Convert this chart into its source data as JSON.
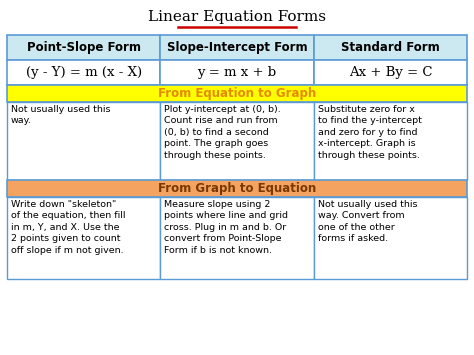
{
  "title": "Linear Equation Forms",
  "title_underline_color": "#cc0000",
  "header_bg": "#cce8f0",
  "header_border": "#5b9bd5",
  "header_texts": [
    "Point-Slope Form",
    "Slope-Intercept Form",
    "Standard Form"
  ],
  "formula_texts": [
    "(y - Y) = m (x - X)",
    "y = m x + b",
    "Ax + By = C"
  ],
  "section1_bg": "#ffff00",
  "section1_text": "From Equation to Graph",
  "section1_text_color": "#e68a00",
  "section2_bg": "#f4a460",
  "section2_text": "From Graph to Equation",
  "section2_text_color": "#7a3800",
  "eq_to_graph": [
    "Not usually used this\nway.",
    "Plot y-intercept at (0, b).\nCount rise and run from\n(0, b) to find a second\npoint. The graph goes\nthrough these points.",
    "Substitute zero for x\nto find the y-intercept\nand zero for y to find\nx-intercept. Graph is\nthrough these points."
  ],
  "graph_to_eq": [
    "Write down \"skeleton\"\nof the equation, then fill\nin m, Y, and X. Use the\n2 points given to count\noff slope if m not given.",
    "Measure slope using 2\npoints where line and grid\ncross. Plug in m and b. Or\nconvert from Point-Slope\nForm if b is not known.",
    "Not usually used this\nway. Convert from\none of the other\nforms if asked."
  ],
  "cell_border": "#5b9bd5",
  "font_size_title": 11,
  "font_size_header": 8.5,
  "font_size_formula": 9.5,
  "font_size_section": 8.5,
  "font_size_cell": 6.8
}
